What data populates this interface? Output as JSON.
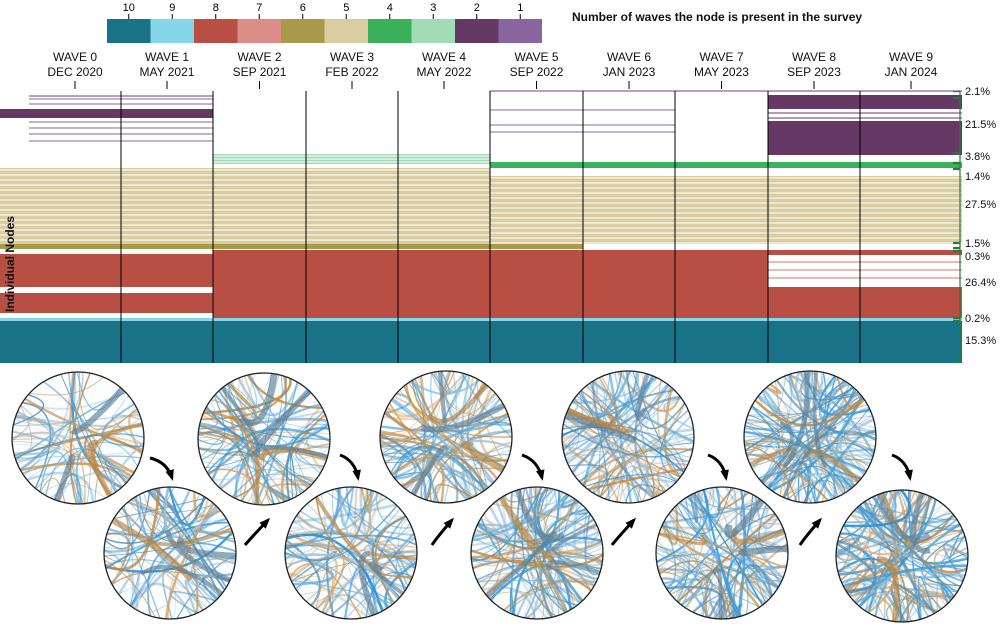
{
  "legend": {
    "title": "Number of waves the node is present in the survey",
    "entries": [
      {
        "label": "10",
        "color": "#1a7287"
      },
      {
        "label": "9",
        "color": "#86d6ea"
      },
      {
        "label": "8",
        "color": "#b74f45"
      },
      {
        "label": "7",
        "color": "#db8c86"
      },
      {
        "label": "6",
        "color": "#a99a4a"
      },
      {
        "label": "5",
        "color": "#d9cda2"
      },
      {
        "label": "4",
        "color": "#3cb15c"
      },
      {
        "label": "3",
        "color": "#a1dcb6"
      },
      {
        "label": "2",
        "color": "#653866"
      },
      {
        "label": "1",
        "color": "#8a65a0"
      }
    ]
  },
  "y_axis_label": "Individual Nodes",
  "waves": [
    {
      "name": "WAVE 0",
      "date": "DEC 2020"
    },
    {
      "name": "WAVE 1",
      "date": "MAY 2021"
    },
    {
      "name": "WAVE 2",
      "date": "SEP 2021"
    },
    {
      "name": "WAVE 3",
      "date": "FEB 2022"
    },
    {
      "name": "WAVE 4",
      "date": "MAY 2022"
    },
    {
      "name": "WAVE 5",
      "date": "SEP 2022"
    },
    {
      "name": "WAVE 6",
      "date": "JAN 2023"
    },
    {
      "name": "WAVE 7",
      "date": "MAY 2023"
    },
    {
      "name": "WAVE 8",
      "date": "SEP 2023"
    },
    {
      "name": "WAVE 9",
      "date": "JAN 2024"
    }
  ],
  "percentages": [
    {
      "label": "2.1%",
      "category": "1"
    },
    {
      "label": "21.5%",
      "category": "2"
    },
    {
      "label": "3.8%",
      "category": "3"
    },
    {
      "label": "1.4%",
      "category": "4"
    },
    {
      "label": "27.5%",
      "category": "5"
    },
    {
      "label": "1.5%",
      "category": "6"
    },
    {
      "label": "0.3%",
      "category": "7"
    },
    {
      "label": "26.4%",
      "category": "8"
    },
    {
      "label": "0.2%",
      "category": "9"
    },
    {
      "label": "15.3%",
      "category": "10"
    }
  ],
  "network_snapshots": {
    "count": 10,
    "description_colors": [
      "#2f8fd0",
      "#c98b3a",
      "#7fa9c8"
    ]
  }
}
